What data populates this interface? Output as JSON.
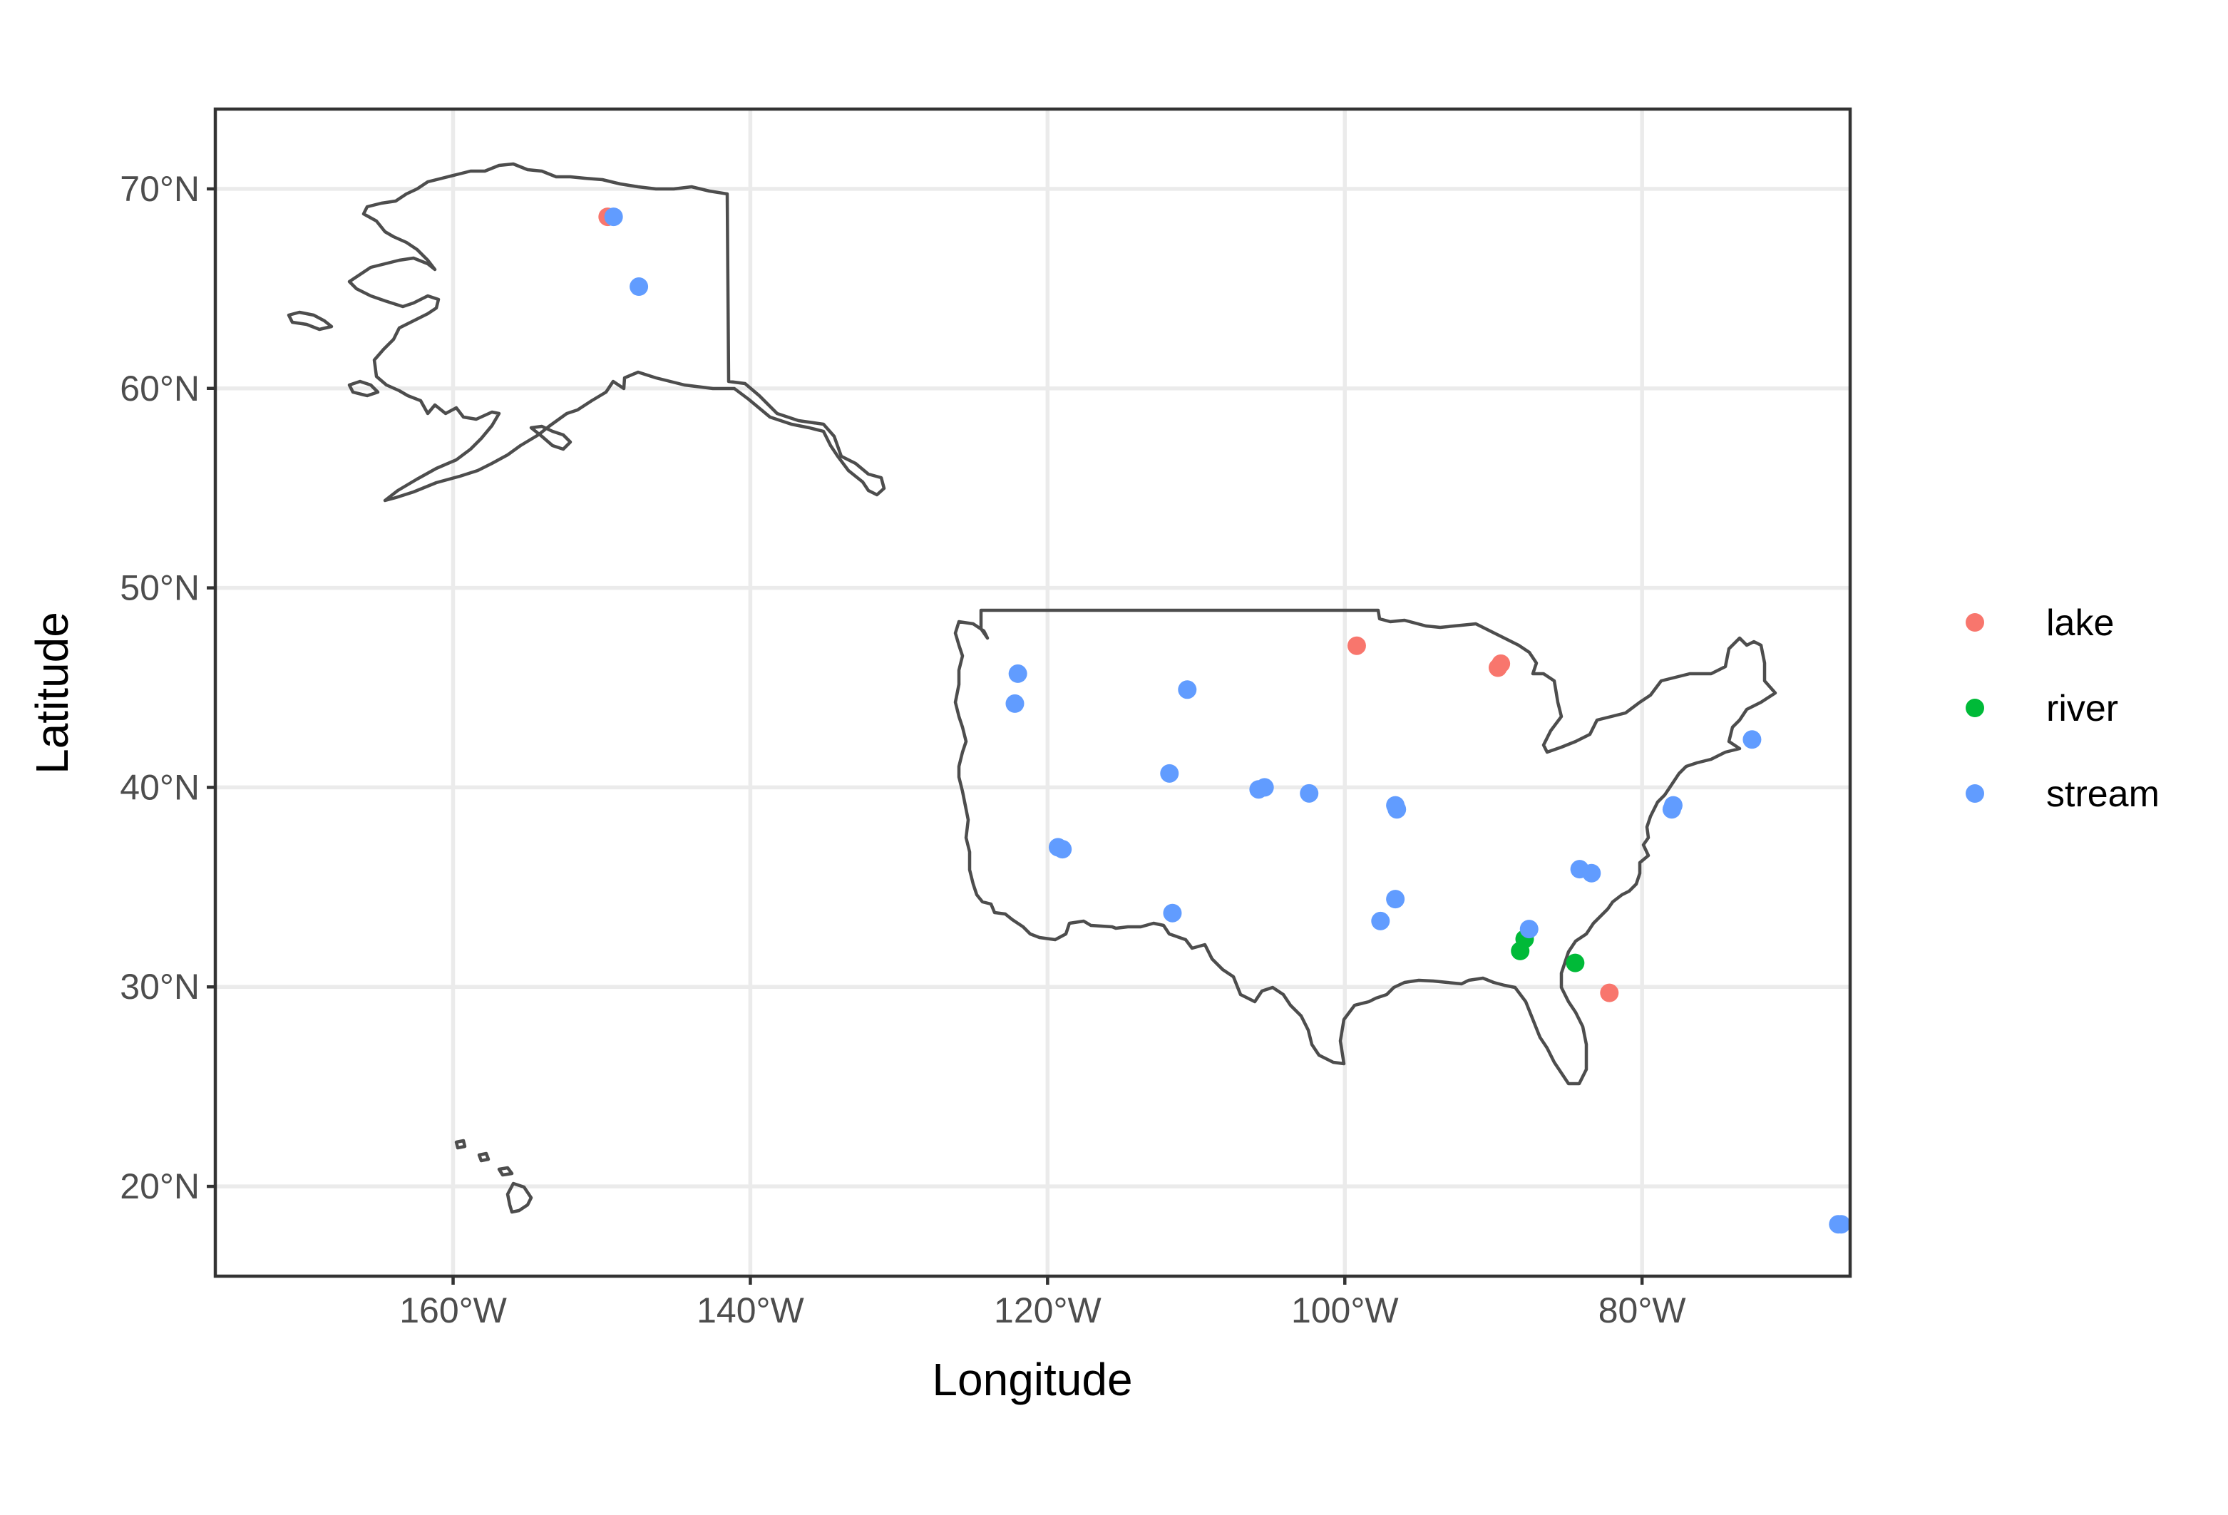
{
  "chart_data": {
    "type": "scatter",
    "xlabel": "Longitude",
    "ylabel": "Latitude",
    "xlim": [
      -176,
      -66
    ],
    "ylim": [
      15.5,
      74
    ],
    "x_ticks": [
      {
        "value": -160,
        "label": "160°W"
      },
      {
        "value": -140,
        "label": "140°W"
      },
      {
        "value": -120,
        "label": "120°W"
      },
      {
        "value": -100,
        "label": "100°W"
      },
      {
        "value": -80,
        "label": "80°W"
      }
    ],
    "y_ticks": [
      {
        "value": 20,
        "label": "20°N"
      },
      {
        "value": 30,
        "label": "30°N"
      },
      {
        "value": 40,
        "label": "40°N"
      },
      {
        "value": 50,
        "label": "50°N"
      },
      {
        "value": 60,
        "label": "60°N"
      },
      {
        "value": 70,
        "label": "70°N"
      }
    ],
    "grid": true,
    "legend_position": "right",
    "colors": {
      "lake": "#f8766d",
      "river": "#00ba38",
      "stream": "#619cff"
    },
    "series": [
      {
        "name": "lake",
        "points": [
          [
            -149.6,
            68.6
          ],
          [
            -99.2,
            47.1
          ],
          [
            -89.7,
            46.0
          ],
          [
            -89.5,
            46.2
          ],
          [
            -82.2,
            29.7
          ]
        ]
      },
      {
        "name": "river",
        "points": [
          [
            -87.9,
            32.4
          ],
          [
            -88.2,
            31.8
          ],
          [
            -84.5,
            31.2
          ]
        ]
      },
      {
        "name": "stream",
        "points": [
          [
            -149.2,
            68.6
          ],
          [
            -147.5,
            65.1
          ],
          [
            -122.0,
            45.7
          ],
          [
            -122.2,
            44.2
          ],
          [
            -110.6,
            44.9
          ],
          [
            -111.8,
            40.7
          ],
          [
            -105.8,
            39.9
          ],
          [
            -105.4,
            40.0
          ],
          [
            -102.4,
            39.7
          ],
          [
            -96.6,
            39.1
          ],
          [
            -96.5,
            38.9
          ],
          [
            -119.3,
            37.0
          ],
          [
            -119.0,
            36.9
          ],
          [
            -111.6,
            33.7
          ],
          [
            -97.6,
            33.3
          ],
          [
            -96.6,
            34.4
          ],
          [
            -87.6,
            32.9
          ],
          [
            -84.2,
            35.9
          ],
          [
            -83.4,
            35.7
          ],
          [
            -78.0,
            38.9
          ],
          [
            -77.9,
            39.1
          ],
          [
            -72.6,
            42.4
          ],
          [
            -66.6,
            18.1
          ],
          [
            -66.8,
            18.1
          ]
        ]
      }
    ]
  }
}
